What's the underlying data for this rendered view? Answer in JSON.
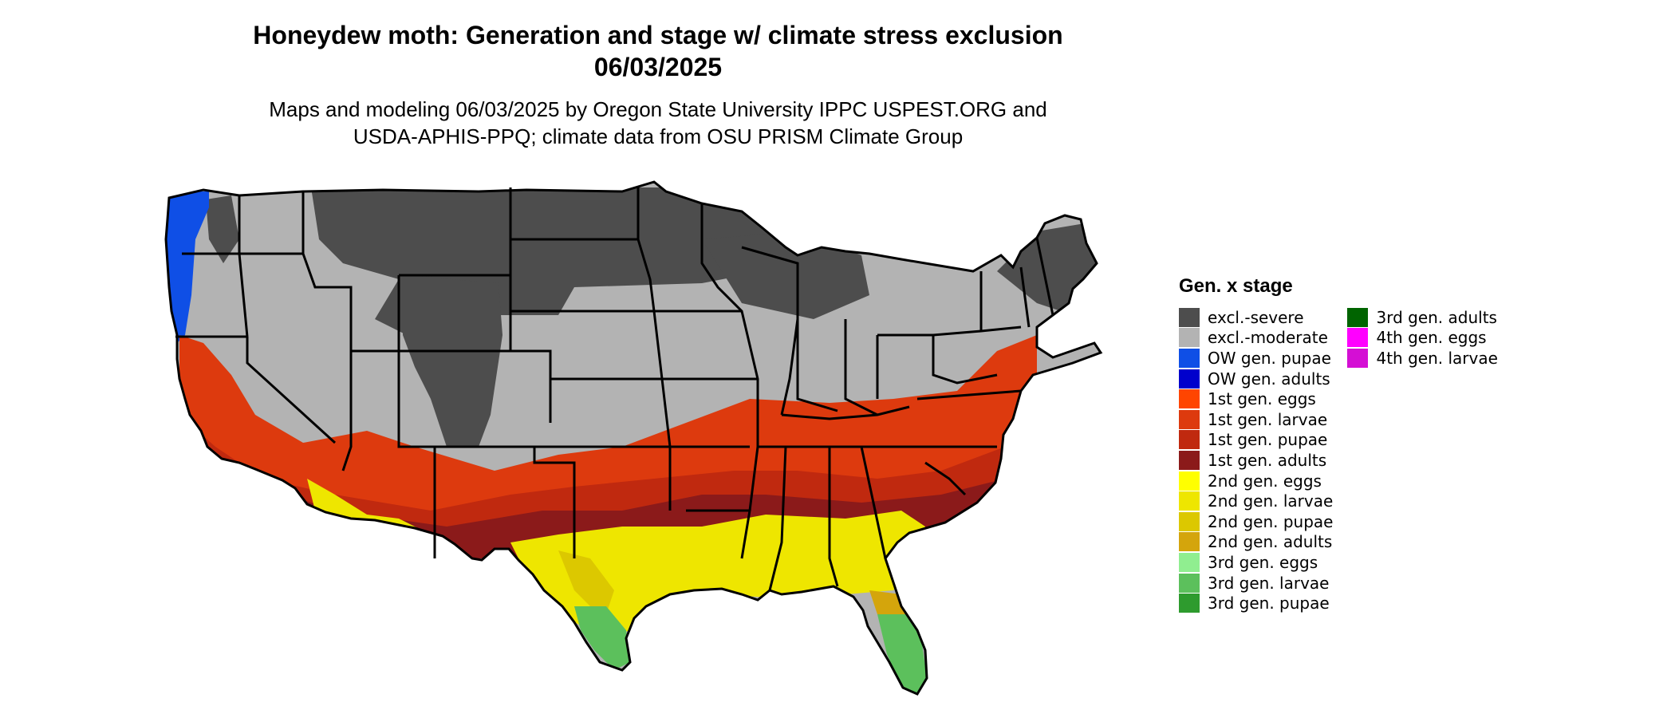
{
  "title_line1": "Honeydew moth: Generation and stage w/ climate stress exclusion",
  "title_line2": "06/03/2025",
  "subtitle_line1": "Maps and modeling 06/03/2025 by Oregon State University IPPC USPEST.ORG and",
  "subtitle_line2": "USDA-APHIS-PPQ; climate data from OSU PRISM Climate Group",
  "legend": {
    "title": "Gen. x stage",
    "col1": [
      {
        "label": "excl.-severe",
        "color": "#4d4d4d"
      },
      {
        "label": "excl.-moderate",
        "color": "#b3b3b3"
      },
      {
        "label": "OW gen. pupae",
        "color": "#0f4fe6"
      },
      {
        "label": "OW gen. adults",
        "color": "#0000cc"
      },
      {
        "label": "1st gen. eggs",
        "color": "#ff4500"
      },
      {
        "label": "1st gen. larvae",
        "color": "#dd3a0e"
      },
      {
        "label": "1st gen. pupae",
        "color": "#c0290f"
      },
      {
        "label": "1st gen. adults",
        "color": "#8b1a1a"
      },
      {
        "label": "2nd gen. eggs",
        "color": "#ffff00"
      },
      {
        "label": "2nd gen. larvae",
        "color": "#eee600"
      },
      {
        "label": "2nd gen. pupae",
        "color": "#dcc800"
      },
      {
        "label": "2nd gen. adults",
        "color": "#d4a50c"
      },
      {
        "label": "3rd gen. eggs",
        "color": "#90ee90"
      },
      {
        "label": "3rd gen. larvae",
        "color": "#5cc05c"
      },
      {
        "label": "3rd gen. pupae",
        "color": "#2e9b2e"
      }
    ],
    "col2": [
      {
        "label": "3rd gen. adults",
        "color": "#006400"
      },
      {
        "label": "4th gen. eggs",
        "color": "#ff00ff"
      },
      {
        "label": "4th gen. larvae",
        "color": "#d40fd4"
      }
    ]
  }
}
